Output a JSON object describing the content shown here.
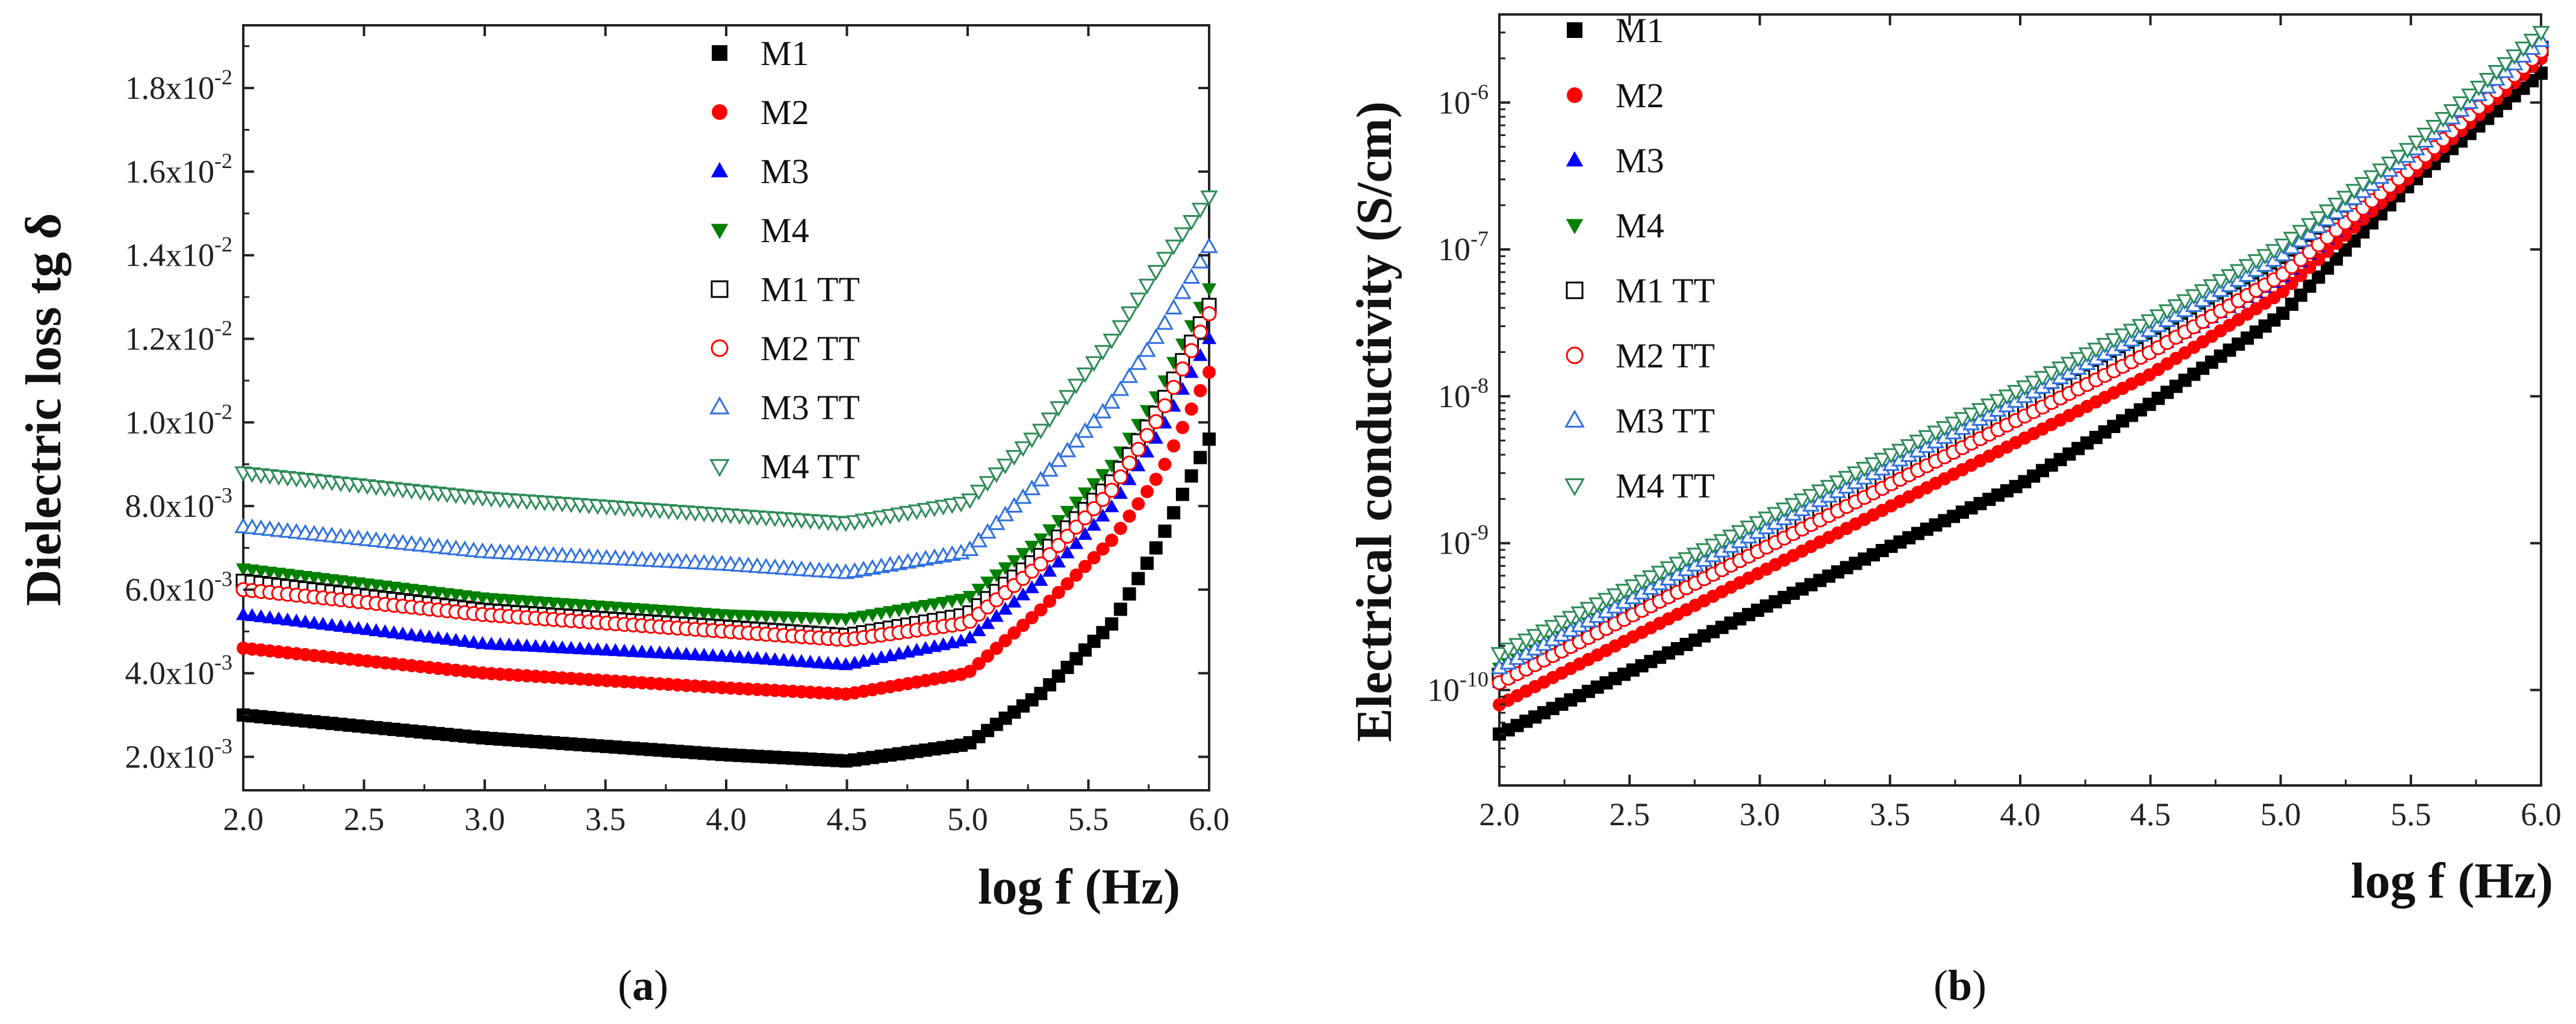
{
  "captions": {
    "a_open": "(",
    "a_letter": "a",
    "a_close": ")",
    "b_open": "(",
    "b_letter": "b",
    "b_close": ")"
  },
  "chart_data": [
    {
      "id": "a",
      "type": "scatter",
      "title": "",
      "xlabel": "log f (Hz)",
      "ylabel": "Dielectric loss tg δ",
      "xlim": [
        2.0,
        6.0
      ],
      "ylim": [
        0.0012,
        0.0195
      ],
      "yscale": "linear",
      "xticks": [
        2.0,
        2.5,
        3.0,
        3.5,
        4.0,
        4.5,
        5.0,
        5.5,
        6.0
      ],
      "xtick_labels": [
        "2.0",
        "2.5",
        "3.0",
        "3.5",
        "4.0",
        "4.5",
        "5.0",
        "5.5",
        "6.0"
      ],
      "yticks": [
        0.002,
        0.004,
        0.006,
        0.008,
        0.01,
        0.012,
        0.014,
        0.016,
        0.018
      ],
      "ytick_labels": [
        {
          "base": "2.0x10",
          "exp": "-3"
        },
        {
          "base": "4.0x10",
          "exp": "-3"
        },
        {
          "base": "6.0x10",
          "exp": "-3"
        },
        {
          "base": "8.0x10",
          "exp": "-3"
        },
        {
          "base": "1.0x10",
          "exp": "-2"
        },
        {
          "base": "1.2x10",
          "exp": "-2"
        },
        {
          "base": "1.4x10",
          "exp": "-2"
        },
        {
          "base": "1.6x10",
          "exp": "-2"
        },
        {
          "base": "1.8x10",
          "exp": "-2"
        }
      ],
      "legend_position": "top-right",
      "series": [
        {
          "name": "M1",
          "marker": "square",
          "filled": true,
          "color": "#000000",
          "x": [
            2.0,
            3.0,
            4.0,
            4.5,
            5.0,
            5.3,
            5.6,
            5.8,
            6.0
          ],
          "y": [
            0.003,
            0.00245,
            0.00205,
            0.0019,
            0.0023,
            0.0035,
            0.0052,
            0.0072,
            0.0096
          ]
        },
        {
          "name": "M2",
          "marker": "circle",
          "filled": true,
          "color": "#ff0000",
          "x": [
            2.0,
            3.0,
            4.0,
            4.5,
            5.0,
            5.3,
            5.6,
            5.8,
            6.0
          ],
          "y": [
            0.0046,
            0.004,
            0.00365,
            0.0035,
            0.004,
            0.0055,
            0.0072,
            0.0088,
            0.0112
          ]
        },
        {
          "name": "M3",
          "marker": "triangle-up",
          "filled": true,
          "color": "#0000ff",
          "x": [
            2.0,
            3.0,
            4.0,
            4.5,
            5.0,
            5.3,
            5.6,
            5.8,
            6.0
          ],
          "y": [
            0.0054,
            0.0047,
            0.0044,
            0.0042,
            0.0048,
            0.0062,
            0.008,
            0.0098,
            0.012
          ]
        },
        {
          "name": "M4",
          "marker": "triangle-down",
          "filled": true,
          "color": "#008000",
          "x": [
            2.0,
            3.0,
            4.0,
            4.5,
            5.0,
            5.3,
            5.6,
            5.8,
            6.0
          ],
          "y": [
            0.0065,
            0.0058,
            0.0054,
            0.0053,
            0.0058,
            0.0072,
            0.009,
            0.0108,
            0.0132
          ]
        },
        {
          "name": "M1 TT",
          "marker": "square",
          "filled": false,
          "color": "#000000",
          "x": [
            2.0,
            3.0,
            4.0,
            4.5,
            5.0,
            5.3,
            5.6,
            5.8,
            6.0
          ],
          "y": [
            0.0062,
            0.0055,
            0.0051,
            0.0049,
            0.0054,
            0.0068,
            0.0086,
            0.0104,
            0.0128
          ]
        },
        {
          "name": "M2 TT",
          "marker": "circle",
          "filled": false,
          "color": "#ff0000",
          "x": [
            2.0,
            3.0,
            4.0,
            4.5,
            5.0,
            5.3,
            5.6,
            5.8,
            6.0
          ],
          "y": [
            0.006,
            0.0054,
            0.005,
            0.0048,
            0.0052,
            0.0066,
            0.0084,
            0.0102,
            0.0126
          ]
        },
        {
          "name": "M3 TT",
          "marker": "triangle-up",
          "filled": false,
          "color": "#3070e0",
          "x": [
            2.0,
            3.0,
            4.0,
            4.5,
            5.0,
            5.3,
            5.6,
            5.8,
            6.0
          ],
          "y": [
            0.0075,
            0.0069,
            0.0066,
            0.0064,
            0.0069,
            0.0086,
            0.0105,
            0.0122,
            0.0142
          ]
        },
        {
          "name": "M4 TT",
          "marker": "triangle-down",
          "filled": false,
          "color": "#2e8b57",
          "x": [
            2.0,
            3.0,
            4.0,
            4.5,
            5.0,
            5.3,
            5.6,
            5.8,
            6.0
          ],
          "y": [
            0.0088,
            0.0082,
            0.0078,
            0.0076,
            0.0081,
            0.0098,
            0.012,
            0.0138,
            0.0154
          ]
        }
      ]
    },
    {
      "id": "b",
      "type": "scatter",
      "title": "",
      "xlabel": "log f (Hz)",
      "ylabel": "Electrical conductivity (S/cm)",
      "xlim": [
        2.0,
        6.0
      ],
      "ylim_log10": [
        -10.65,
        -5.4
      ],
      "yscale": "log",
      "xticks": [
        2.0,
        2.5,
        3.0,
        3.5,
        4.0,
        4.5,
        5.0,
        5.5,
        6.0
      ],
      "xtick_labels": [
        "2.0",
        "2.5",
        "3.0",
        "3.5",
        "4.0",
        "4.5",
        "5.0",
        "5.5",
        "6.0"
      ],
      "yticks_log10": [
        -10,
        -9,
        -8,
        -7,
        -6
      ],
      "ytick_labels": [
        {
          "base": "10",
          "exp": "-10"
        },
        {
          "base": "10",
          "exp": "-9"
        },
        {
          "base": "10",
          "exp": "-8"
        },
        {
          "base": "10",
          "exp": "-7"
        },
        {
          "base": "10",
          "exp": "-6"
        }
      ],
      "legend_position": "top-left",
      "series": [
        {
          "name": "M1",
          "marker": "square",
          "filled": true,
          "color": "#000000",
          "x": [
            2.0,
            3.0,
            4.0,
            4.5,
            5.0,
            5.5,
            6.0
          ],
          "y_log10": [
            -10.3,
            -9.45,
            -8.6,
            -8.05,
            -7.45,
            -6.55,
            -5.8
          ]
        },
        {
          "name": "M2",
          "marker": "circle",
          "filled": true,
          "color": "#ff0000",
          "x": [
            2.0,
            3.0,
            4.0,
            4.5,
            5.0,
            5.5,
            6.0
          ],
          "y_log10": [
            -10.1,
            -9.2,
            -8.3,
            -7.85,
            -7.3,
            -6.5,
            -5.7
          ]
        },
        {
          "name": "M3",
          "marker": "triangle-up",
          "filled": true,
          "color": "#0000ff",
          "x": [
            2.0,
            3.0,
            4.0,
            4.5,
            5.0,
            5.5,
            6.0
          ],
          "y_log10": [
            -9.95,
            -9.05,
            -8.15,
            -7.7,
            -7.2,
            -6.45,
            -5.65
          ]
        },
        {
          "name": "M4",
          "marker": "triangle-down",
          "filled": true,
          "color": "#008000",
          "x": [
            2.0,
            3.0,
            4.0,
            4.5,
            5.0,
            5.5,
            6.0
          ],
          "y_log10": [
            -9.85,
            -8.95,
            -8.05,
            -7.6,
            -7.1,
            -6.4,
            -5.62
          ]
        },
        {
          "name": "M1 TT",
          "marker": "square",
          "filled": false,
          "color": "#000000",
          "x": [
            2.0,
            3.0,
            4.0,
            4.5,
            5.0,
            5.5,
            6.0
          ],
          "y_log10": [
            -9.9,
            -9.0,
            -8.1,
            -7.65,
            -7.15,
            -6.42,
            -5.63
          ]
        },
        {
          "name": "M2 TT",
          "marker": "circle",
          "filled": false,
          "color": "#ff0000",
          "x": [
            2.0,
            3.0,
            4.0,
            4.5,
            5.0,
            5.5,
            6.0
          ],
          "y_log10": [
            -9.95,
            -9.05,
            -8.15,
            -7.7,
            -7.18,
            -6.45,
            -5.65
          ]
        },
        {
          "name": "M3 TT",
          "marker": "triangle-up",
          "filled": false,
          "color": "#3070e0",
          "x": [
            2.0,
            3.0,
            4.0,
            4.5,
            5.0,
            5.5,
            6.0
          ],
          "y_log10": [
            -9.85,
            -8.92,
            -8.02,
            -7.55,
            -7.05,
            -6.35,
            -5.58
          ]
        },
        {
          "name": "M4 TT",
          "marker": "triangle-down",
          "filled": false,
          "color": "#2e8b57",
          "x": [
            2.0,
            3.0,
            4.0,
            4.5,
            5.0,
            5.5,
            6.0
          ],
          "y_log10": [
            -9.75,
            -8.85,
            -7.95,
            -7.48,
            -6.98,
            -6.3,
            -5.52
          ]
        }
      ]
    }
  ]
}
